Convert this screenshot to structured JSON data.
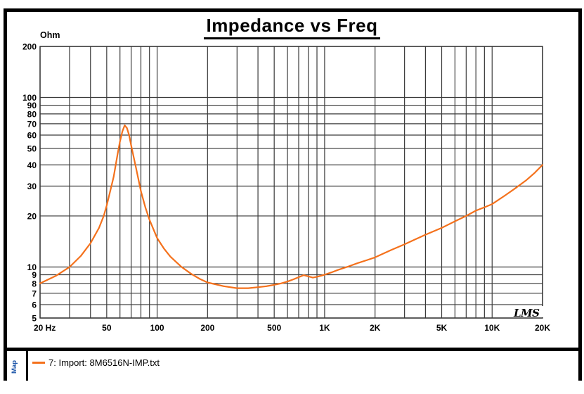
{
  "chart": {
    "title": "Impedance vs Freq",
    "ylabel": "Ohm"
  },
  "branding": {
    "logo_text": "LMS"
  },
  "legend": {
    "panel_label": "Map",
    "items": [
      {
        "label": "7: Import: 8M6516N-IMP.txt",
        "color": "#F4711C"
      }
    ]
  },
  "chart_data": {
    "type": "line",
    "title": "Impedance vs Freq",
    "xlabel": "",
    "ylabel": "Ohm",
    "x_scale": "log",
    "y_scale": "log",
    "xlim": [
      20,
      20000
    ],
    "ylim": [
      5,
      200
    ],
    "grid": "on",
    "grid_color": "#3A3A3A",
    "legend_position": "bottom-left",
    "x_tick_labels": [
      {
        "f": 20,
        "label": "20 Hz"
      },
      {
        "f": 50,
        "label": "50"
      },
      {
        "f": 100,
        "label": "100"
      },
      {
        "f": 200,
        "label": "200"
      },
      {
        "f": 500,
        "label": "500"
      },
      {
        "f": 1000,
        "label": "1K"
      },
      {
        "f": 2000,
        "label": "2K"
      },
      {
        "f": 5000,
        "label": "5K"
      },
      {
        "f": 10000,
        "label": "10K"
      },
      {
        "f": 20000,
        "label": "20K"
      }
    ],
    "x_gridlines": [
      20,
      30,
      40,
      50,
      60,
      70,
      80,
      90,
      100,
      200,
      300,
      400,
      500,
      600,
      700,
      800,
      900,
      1000,
      2000,
      3000,
      4000,
      5000,
      6000,
      7000,
      8000,
      9000,
      10000,
      20000
    ],
    "y_ticks": [
      200,
      100,
      90,
      80,
      70,
      60,
      50,
      40,
      30,
      20,
      10,
      9,
      8,
      7,
      6,
      5
    ],
    "series": [
      {
        "name": "7: Import: 8M6516N-IMP.txt",
        "color": "#F4711C",
        "x": [
          20,
          25,
          30,
          35,
          40,
          45,
          48,
          50,
          52,
          55,
          58,
          60,
          62,
          64,
          66,
          68,
          70,
          75,
          80,
          85,
          90,
          100,
          110,
          120,
          140,
          160,
          180,
          200,
          250,
          300,
          350,
          400,
          450,
          500,
          550,
          600,
          650,
          700,
          750,
          800,
          850,
          900,
          1000,
          1100,
          1200,
          1400,
          1600,
          1800,
          2000,
          2500,
          3000,
          3500,
          4000,
          5000,
          6000,
          7000,
          8000,
          9000,
          10000,
          12000,
          14000,
          16000,
          18000,
          20000
        ],
        "y": [
          8.0,
          8.9,
          10.0,
          11.6,
          13.8,
          17.0,
          20.0,
          23.0,
          27.0,
          34.0,
          46.0,
          55.0,
          63.0,
          68.5,
          66.0,
          60.0,
          52.0,
          38.0,
          28.0,
          22.5,
          19.0,
          14.8,
          12.8,
          11.5,
          10.0,
          9.1,
          8.5,
          8.1,
          7.7,
          7.5,
          7.5,
          7.6,
          7.7,
          7.85,
          8.0,
          8.2,
          8.45,
          8.7,
          8.95,
          8.8,
          8.65,
          8.75,
          9.0,
          9.3,
          9.6,
          10.1,
          10.6,
          11.0,
          11.4,
          12.6,
          13.6,
          14.6,
          15.5,
          17.0,
          18.6,
          20.0,
          21.5,
          22.5,
          23.5,
          26.5,
          29.5,
          32.5,
          36.0,
          40.0
        ]
      }
    ]
  }
}
